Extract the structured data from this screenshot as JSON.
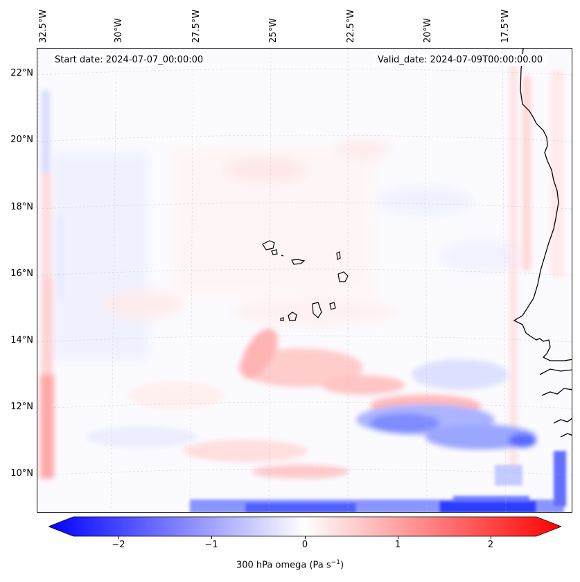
{
  "map": {
    "lon_labels": [
      "32.5°W",
      "30°W",
      "27.5°W",
      "25°W",
      "22.5°W",
      "20°W",
      "17.5°W"
    ],
    "lat_labels": [
      "22°N",
      "20°N",
      "18°N",
      "16°N",
      "14°N",
      "12°N",
      "10°N"
    ],
    "start_date": "Start date: 2024-07-07_00:00:00",
    "valid_date": "Valid_date: 2024-07-09T00:00:00.00",
    "colors": {
      "negative": "#0000ff",
      "zero": "#ffffff",
      "positive": "#ff0000",
      "coast": "#000000"
    }
  },
  "colorbar": {
    "ticks": [
      "−2",
      "−1",
      "0",
      "1",
      "2"
    ],
    "min": -2.7,
    "max": 2.7,
    "label_main": "300 hPa omega (Pa s",
    "label_sup": "−1",
    "label_end": ")"
  }
}
